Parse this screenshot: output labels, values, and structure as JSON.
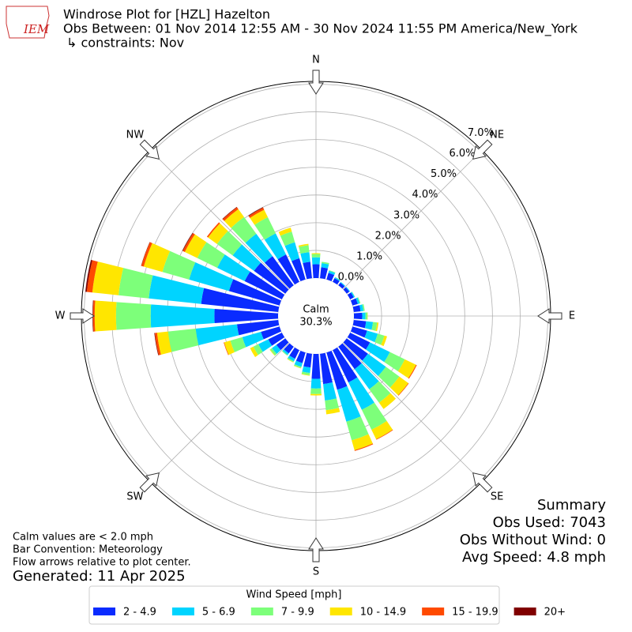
{
  "chart_data": {
    "type": "windrose",
    "title": "Windrose Plot for [HZL] Hazelton",
    "subtitle": "Obs Between: 01 Nov 2014 12:55 AM - 30 Nov 2024 11:55 PM America/New_York",
    "constraints": "↳ constraints: Nov",
    "logo_text": "IEM",
    "direction_labels": [
      "N",
      "NE",
      "E",
      "SE",
      "S",
      "SW",
      "W",
      "NW"
    ],
    "x": [
      0,
      10,
      20,
      30,
      40,
      50,
      60,
      70,
      80,
      90,
      100,
      110,
      120,
      130,
      140,
      150,
      160,
      170,
      180,
      190,
      200,
      210,
      220,
      230,
      240,
      250,
      260,
      270,
      280,
      290,
      300,
      310,
      320,
      330,
      340,
      350
    ],
    "ylim": [
      0,
      7.1
    ],
    "yticks": [
      {
        "value": 0,
        "label": "0.0%"
      },
      {
        "value": 1,
        "label": "1.0%"
      },
      {
        "value": 2,
        "label": "2.0%"
      },
      {
        "value": 3,
        "label": "3.0%"
      },
      {
        "value": 4,
        "label": "4.0%"
      },
      {
        "value": 5,
        "label": "5.0%"
      },
      {
        "value": 6,
        "label": "6.0%"
      },
      {
        "value": 7,
        "label": "7.0%"
      }
    ],
    "calm_text": [
      "Calm",
      "30.3%"
    ],
    "legend_title": "Wind Speed [mph]",
    "series": [
      {
        "name": "2 - 4.9",
        "color": "#0a2bff",
        "values": [
          0.5,
          0.4,
          0.25,
          0.15,
          0.12,
          0.12,
          0.15,
          0.2,
          0.25,
          0.3,
          0.45,
          0.55,
          0.8,
          0.95,
          1.0,
          1.3,
          1.4,
          1.1,
          0.9,
          0.5,
          0.4,
          0.35,
          0.3,
          0.4,
          0.55,
          0.7,
          1.5,
          2.3,
          2.8,
          1.9,
          1.5,
          1.4,
          1.3,
          1.1,
          0.8,
          0.6
        ]
      },
      {
        "name": "5 - 6.9",
        "color": "#00d4ff",
        "values": [
          0.25,
          0.15,
          0.08,
          0.04,
          0.03,
          0.03,
          0.04,
          0.07,
          0.1,
          0.12,
          0.25,
          0.4,
          0.8,
          0.8,
          0.9,
          1.1,
          1.2,
          0.6,
          0.35,
          0.2,
          0.14,
          0.1,
          0.07,
          0.2,
          0.4,
          0.7,
          1.5,
          2.3,
          1.9,
          1.5,
          1.1,
          0.95,
          1.0,
          0.85,
          0.6,
          0.35
        ]
      },
      {
        "name": "7 - 9.9",
        "color": "#7dff7a",
        "values": [
          0.12,
          0.05,
          0.02,
          0.01,
          0,
          0,
          0.01,
          0.03,
          0.05,
          0.07,
          0.15,
          0.25,
          0.6,
          0.6,
          0.6,
          0.8,
          0.7,
          0.35,
          0.2,
          0.08,
          0.05,
          0.04,
          0.03,
          0.08,
          0.2,
          0.45,
          1.0,
          1.25,
          1.1,
          1.0,
          0.8,
          0.7,
          0.75,
          0.65,
          0.4,
          0.25
        ]
      },
      {
        "name": "10 - 14.9",
        "color": "#ffe600",
        "values": [
          0.03,
          0,
          0,
          0,
          0,
          0,
          0,
          0,
          0,
          0.01,
          0.05,
          0.1,
          0.45,
          0.4,
          0.28,
          0.38,
          0.37,
          0.15,
          0.05,
          0.02,
          0.01,
          0.01,
          0,
          0.02,
          0.13,
          0.23,
          0.4,
          0.77,
          0.95,
          0.7,
          0.5,
          0.4,
          0.35,
          0.3,
          0.15,
          0.05
        ]
      },
      {
        "name": "15 - 19.9",
        "color": "#ff4a00",
        "values": [
          0,
          0,
          0,
          0,
          0,
          0,
          0,
          0,
          0,
          0,
          0,
          0,
          0.03,
          0.02,
          0,
          0.02,
          0.03,
          0,
          0,
          0,
          0,
          0,
          0,
          0,
          0,
          0.02,
          0.08,
          0.06,
          0.2,
          0.09,
          0.08,
          0.05,
          0.08,
          0.08,
          0,
          0
        ]
      },
      {
        "name": "20+",
        "color": "#800000",
        "values": [
          0,
          0,
          0,
          0,
          0,
          0,
          0,
          0,
          0,
          0,
          0,
          0,
          0,
          0,
          0,
          0,
          0,
          0,
          0,
          0,
          0,
          0,
          0,
          0,
          0,
          0,
          0.02,
          0.02,
          0.05,
          0.01,
          0.02,
          0,
          0.02,
          0.02,
          0,
          0
        ]
      }
    ],
    "summary": [
      "Summary",
      "Obs Used: 7043",
      "Obs Without Wind: 0",
      "Avg Speed: 4.8 mph"
    ],
    "notes": [
      "Calm values are < 2.0 mph",
      "Bar Convention: Meteorology",
      "Flow arrows relative to plot center."
    ],
    "generated": "Generated: 11 Apr 2025"
  }
}
